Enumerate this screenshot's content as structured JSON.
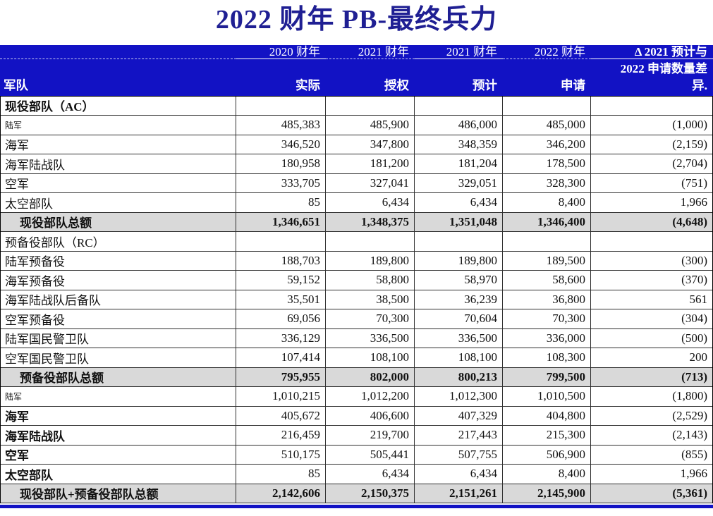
{
  "title": "2022 财年 PB-最终兵力",
  "colors": {
    "header_background": "#1212C4",
    "title_text": "#1F1F93",
    "total_row_background": "#D9D9D9",
    "accent_bar": "#1212C4"
  },
  "table": {
    "corner_label": "军队",
    "columns": [
      {
        "year": "2020 财年",
        "measure": "实际"
      },
      {
        "year": "2021 财年",
        "measure": "授权"
      },
      {
        "year": "2021 财年",
        "measure": "预计"
      },
      {
        "year": "2022 财年",
        "measure": "申请"
      },
      {
        "year": "Δ 2021 预计与",
        "year_line2": "2022 申请数量差",
        "measure": "异."
      }
    ],
    "rows": [
      {
        "kind": "section",
        "label": "现役部队（AC）",
        "label_style": "bold",
        "values": [
          "",
          "",
          "",
          "",
          ""
        ]
      },
      {
        "kind": "data",
        "label": "陆军",
        "label_style": "small",
        "values": [
          "485,383",
          "485,900",
          "486,000",
          "485,000",
          "(1,000)"
        ]
      },
      {
        "kind": "data",
        "label": "海军",
        "label_style": "normal",
        "values": [
          "346,520",
          "347,800",
          "348,359",
          "346,200",
          "(2,159)"
        ]
      },
      {
        "kind": "data",
        "label": "海军陆战队",
        "label_style": "normal",
        "values": [
          "180,958",
          "181,200",
          "181,204",
          "178,500",
          "(2,704)"
        ]
      },
      {
        "kind": "data",
        "label": "空军",
        "label_style": "normal",
        "values": [
          "333,705",
          "327,041",
          "329,051",
          "328,300",
          "(751)"
        ]
      },
      {
        "kind": "data",
        "label": "太空部队",
        "label_style": "normal",
        "values": [
          "85",
          "6,434",
          "6,434",
          "8,400",
          "1,966"
        ]
      },
      {
        "kind": "total",
        "label": "现役部队总额",
        "label_style": "bold",
        "values": [
          "1,346,651",
          "1,348,375",
          "1,351,048",
          "1,346,400",
          "(4,648)"
        ]
      },
      {
        "kind": "section",
        "label": "预备役部队（RC）",
        "label_style": "normal",
        "values": [
          "",
          "",
          "",
          "",
          ""
        ]
      },
      {
        "kind": "data",
        "label": "陆军预备役",
        "label_style": "normal",
        "values": [
          "188,703",
          "189,800",
          "189,800",
          "189,500",
          "(300)"
        ]
      },
      {
        "kind": "data",
        "label": "海军预备役",
        "label_style": "normal",
        "values": [
          "59,152",
          "58,800",
          "58,970",
          "58,600",
          "(370)"
        ]
      },
      {
        "kind": "data",
        "label": "海军陆战队后备队",
        "label_style": "normal",
        "values": [
          "35,501",
          "38,500",
          "36,239",
          "36,800",
          "561"
        ]
      },
      {
        "kind": "data",
        "label": "空军预备役",
        "label_style": "normal",
        "values": [
          "69,056",
          "70,300",
          "70,604",
          "70,300",
          "(304)"
        ]
      },
      {
        "kind": "data",
        "label": "陆军国民警卫队",
        "label_style": "normal",
        "values": [
          "336,129",
          "336,500",
          "336,500",
          "336,000",
          "(500)"
        ]
      },
      {
        "kind": "data",
        "label": "空军国民警卫队",
        "label_style": "normal",
        "values": [
          "107,414",
          "108,100",
          "108,100",
          "108,300",
          "200"
        ]
      },
      {
        "kind": "total",
        "label": "预备役部队总额",
        "label_style": "bold",
        "values": [
          "795,955",
          "802,000",
          "800,213",
          "799,500",
          "(713)"
        ]
      },
      {
        "kind": "data",
        "label": "陆军",
        "label_style": "small",
        "values": [
          "1,010,215",
          "1,012,200",
          "1,012,300",
          "1,010,500",
          "(1,800)"
        ]
      },
      {
        "kind": "data",
        "label": "海军",
        "label_style": "bold",
        "values": [
          "405,672",
          "406,600",
          "407,329",
          "404,800",
          "(2,529)"
        ]
      },
      {
        "kind": "data",
        "label": "海军陆战队",
        "label_style": "bold",
        "values": [
          "216,459",
          "219,700",
          "217,443",
          "215,300",
          "(2,143)"
        ]
      },
      {
        "kind": "data",
        "label": "空军",
        "label_style": "bold",
        "values": [
          "510,175",
          "505,441",
          "507,755",
          "506,900",
          "(855)"
        ]
      },
      {
        "kind": "data",
        "label": "太空部队",
        "label_style": "bold",
        "values": [
          "85",
          "6,434",
          "6,434",
          "8,400",
          "1,966"
        ]
      },
      {
        "kind": "total",
        "label": "现役部队+预备役部队总额",
        "label_style": "bold",
        "values": [
          "2,142,606",
          "2,150,375",
          "2,151,261",
          "2,145,900",
          "(5,361)"
        ]
      }
    ]
  }
}
